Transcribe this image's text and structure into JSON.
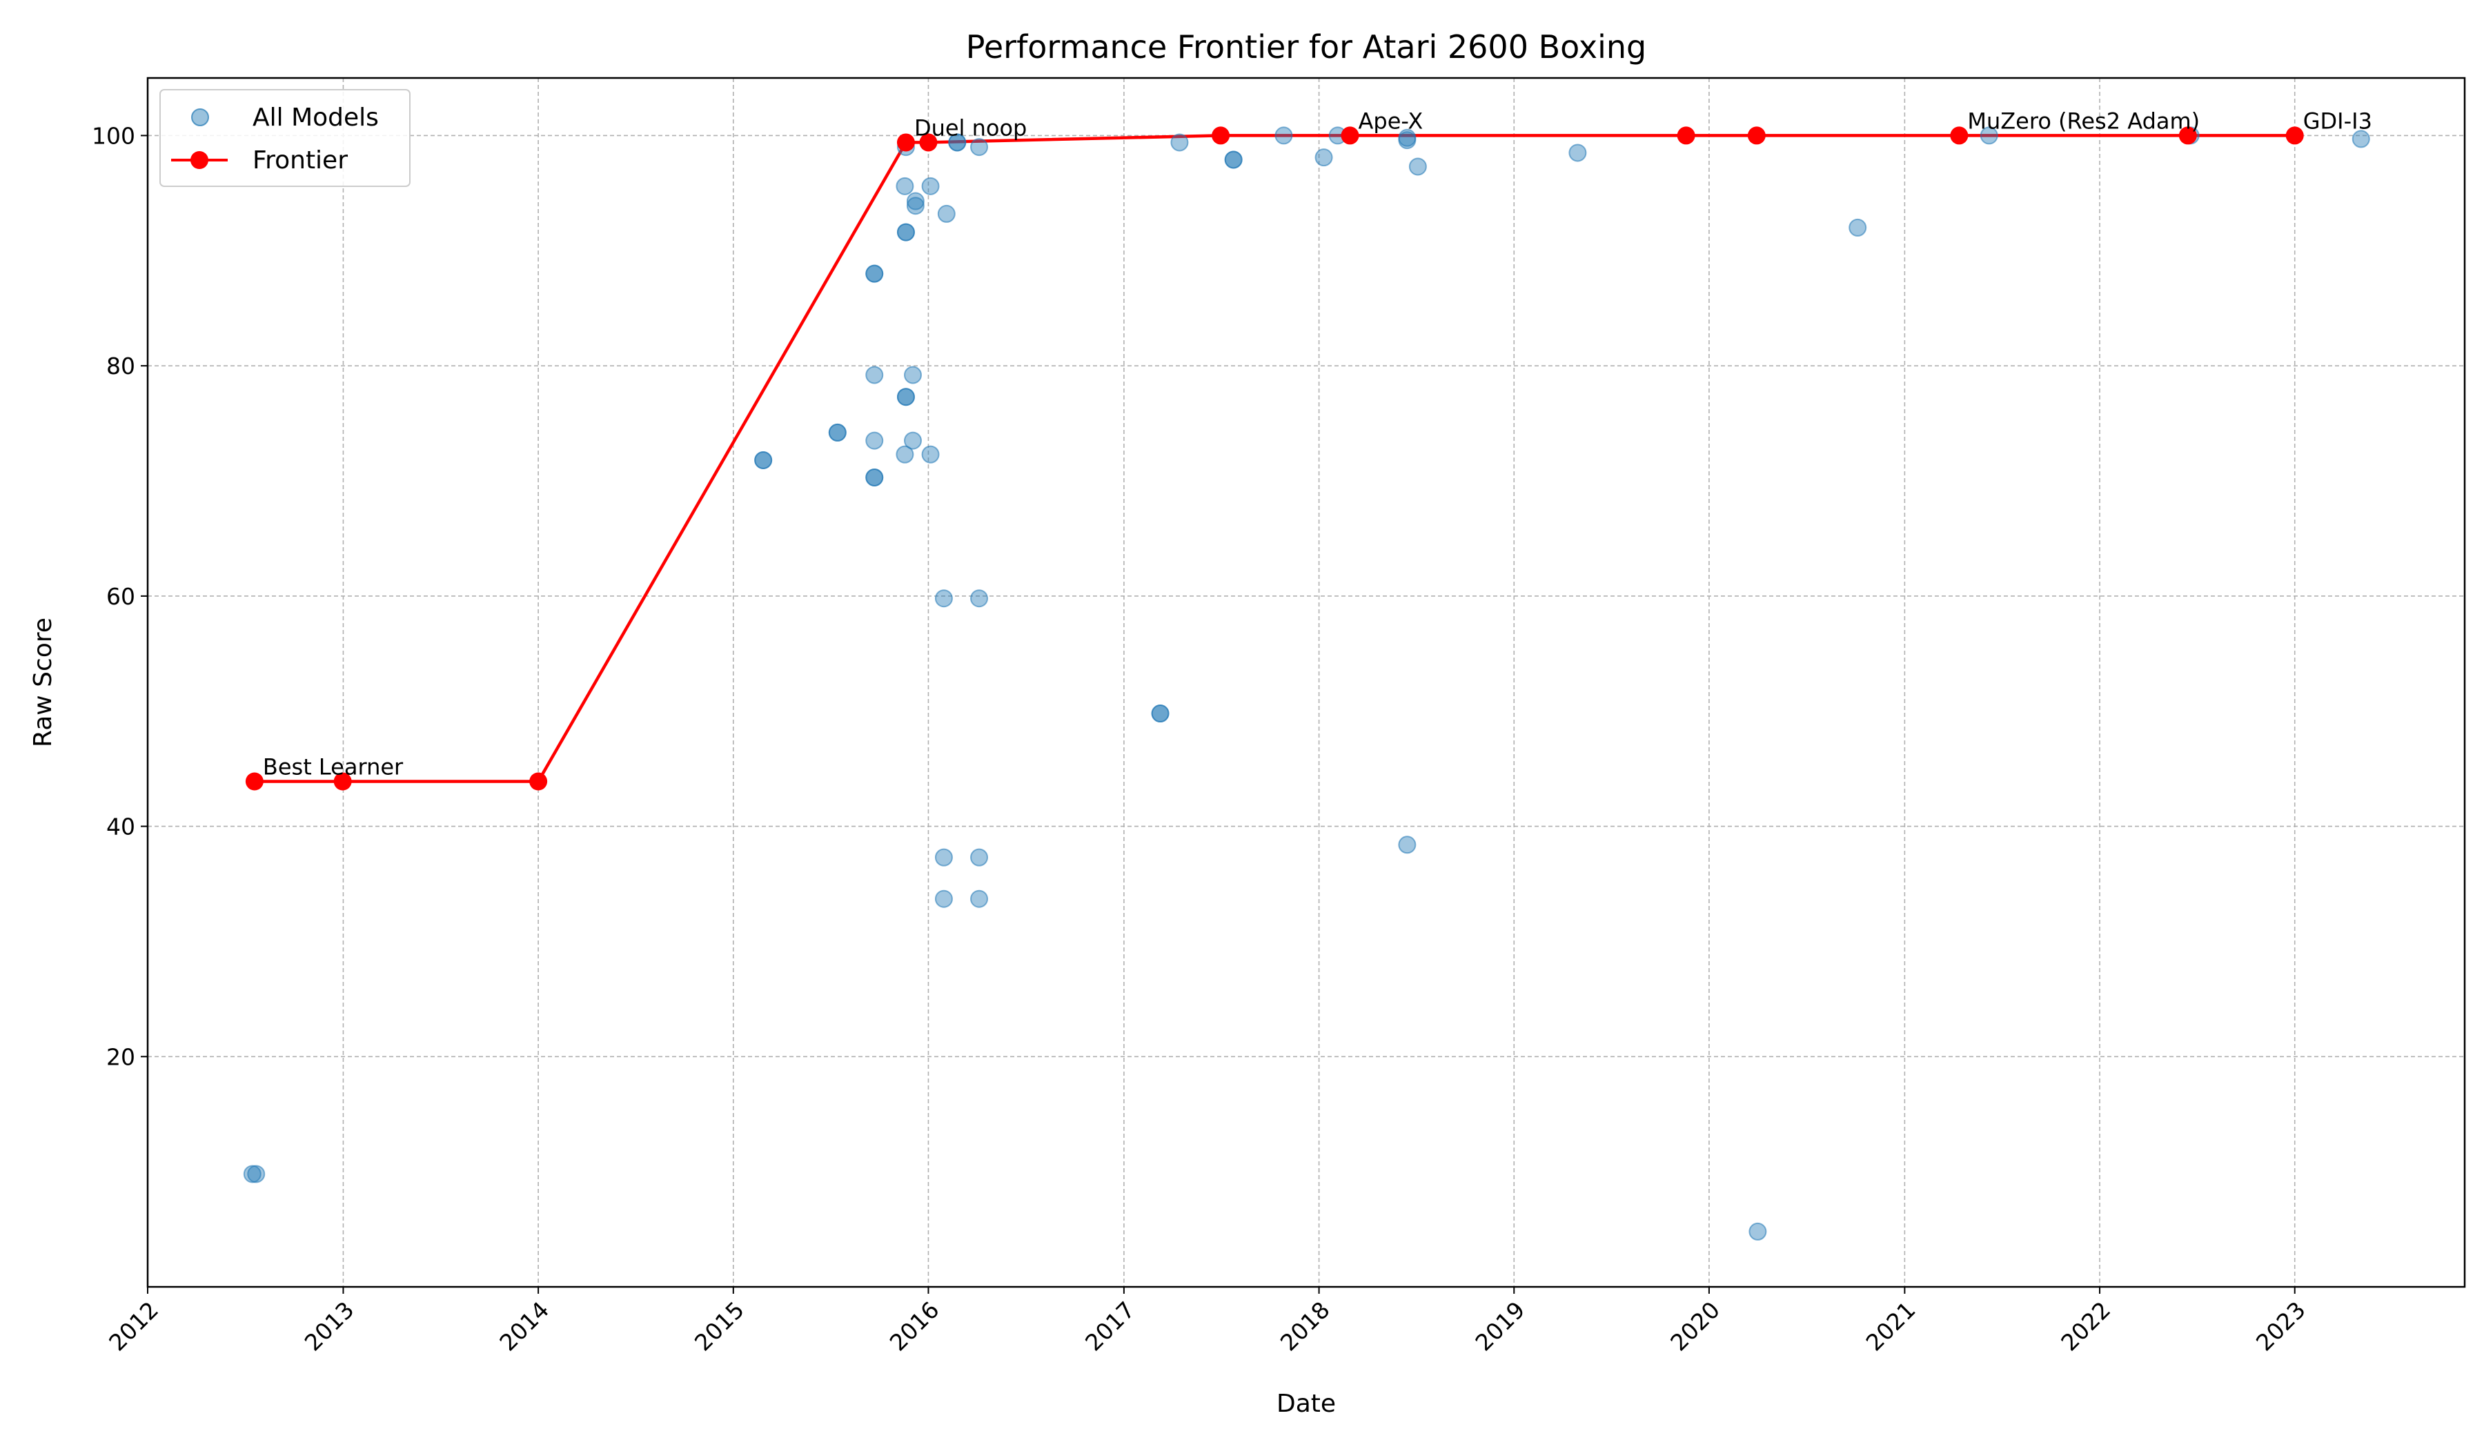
{
  "chart_data": {
    "type": "scatter",
    "title": "Performance Frontier for Atari 2600 Boxing",
    "xlabel": "Date",
    "ylabel": "Raw Score",
    "xlim": [
      "2012-01-01",
      "2023-11-15"
    ],
    "ylim": [
      0,
      105
    ],
    "x_ticks": [
      "2012",
      "2013",
      "2014",
      "2015",
      "2016",
      "2017",
      "2018",
      "2019",
      "2020",
      "2021",
      "2022",
      "2023"
    ],
    "y_ticks": [
      20,
      40,
      60,
      80,
      100
    ],
    "grid": true,
    "legend_position": "top-left",
    "colors": {
      "all_models": "#1f77b4",
      "frontier": "#ff0000"
    },
    "series": [
      {
        "name": "All Models",
        "kind": "scatter",
        "points": [
          {
            "x": "2012-07-15",
            "y": 9.8
          },
          {
            "x": "2012-07-22",
            "y": 9.8
          },
          {
            "x": "2015-02-26",
            "y": 71.8
          },
          {
            "x": "2015-02-26",
            "y": 71.8
          },
          {
            "x": "2015-07-15",
            "y": 74.2
          },
          {
            "x": "2015-07-15",
            "y": 74.2
          },
          {
            "x": "2015-09-22",
            "y": 88.0
          },
          {
            "x": "2015-09-22",
            "y": 88.0
          },
          {
            "x": "2015-09-22",
            "y": 79.2
          },
          {
            "x": "2015-09-22",
            "y": 73.5
          },
          {
            "x": "2015-09-22",
            "y": 70.3
          },
          {
            "x": "2015-09-22",
            "y": 70.3
          },
          {
            "x": "2015-11-20",
            "y": 99.0
          },
          {
            "x": "2015-11-18",
            "y": 95.6
          },
          {
            "x": "2015-11-20",
            "y": 91.6
          },
          {
            "x": "2015-11-20",
            "y": 91.6
          },
          {
            "x": "2015-11-20",
            "y": 77.3
          },
          {
            "x": "2015-11-20",
            "y": 77.3
          },
          {
            "x": "2015-11-18",
            "y": 72.3
          },
          {
            "x": "2015-12-08",
            "y": 94.3
          },
          {
            "x": "2015-12-08",
            "y": 93.9
          },
          {
            "x": "2015-12-03",
            "y": 79.2
          },
          {
            "x": "2015-12-03",
            "y": 73.5
          },
          {
            "x": "2016-01-05",
            "y": 95.6
          },
          {
            "x": "2016-01-05",
            "y": 72.3
          },
          {
            "x": "2016-02-04",
            "y": 93.2
          },
          {
            "x": "2016-02-24",
            "y": 99.4
          },
          {
            "x": "2016-02-24",
            "y": 99.4
          },
          {
            "x": "2016-04-05",
            "y": 99.0
          },
          {
            "x": "2016-01-30",
            "y": 59.8
          },
          {
            "x": "2016-04-05",
            "y": 59.8
          },
          {
            "x": "2016-01-30",
            "y": 37.3
          },
          {
            "x": "2016-04-05",
            "y": 37.3
          },
          {
            "x": "2016-01-30",
            "y": 33.7
          },
          {
            "x": "2016-04-05",
            "y": 33.7
          },
          {
            "x": "2017-03-10",
            "y": 49.8
          },
          {
            "x": "2017-03-10",
            "y": 49.8
          },
          {
            "x": "2017-04-15",
            "y": 99.4
          },
          {
            "x": "2017-07-25",
            "y": 97.9
          },
          {
            "x": "2017-07-25",
            "y": 97.9
          },
          {
            "x": "2017-10-27",
            "y": 100.0
          },
          {
            "x": "2018-01-10",
            "y": 98.1
          },
          {
            "x": "2018-02-05",
            "y": 100.0
          },
          {
            "x": "2018-06-15",
            "y": 99.8
          },
          {
            "x": "2018-06-15",
            "y": 99.6
          },
          {
            "x": "2018-07-05",
            "y": 97.3
          },
          {
            "x": "2018-06-15",
            "y": 38.4
          },
          {
            "x": "2019-04-30",
            "y": 98.5
          },
          {
            "x": "2020-04-01",
            "y": 4.8
          },
          {
            "x": "2020-10-05",
            "y": 92.0
          },
          {
            "x": "2021-06-08",
            "y": 100.0
          },
          {
            "x": "2022-06-20",
            "y": 100.0
          },
          {
            "x": "2023-05-05",
            "y": 99.7
          }
        ]
      },
      {
        "name": "Frontier",
        "kind": "line",
        "points": [
          {
            "x": "2012-07-19",
            "y": 43.9
          },
          {
            "x": "2012-12-31",
            "y": 43.9
          },
          {
            "x": "2014-01-01",
            "y": 43.9
          },
          {
            "x": "2015-11-20",
            "y": 99.4
          },
          {
            "x": "2016-01-01",
            "y": 99.4
          },
          {
            "x": "2017-07-01",
            "y": 100.0
          },
          {
            "x": "2018-02-28",
            "y": 100.0
          },
          {
            "x": "2019-11-19",
            "y": 100.0
          },
          {
            "x": "2020-03-30",
            "y": 100.0
          },
          {
            "x": "2021-04-13",
            "y": 100.0
          },
          {
            "x": "2022-06-15",
            "y": 100.0
          },
          {
            "x": "2023-01-01",
            "y": 100.0
          }
        ]
      }
    ],
    "annotations": [
      {
        "text": "Best Learner",
        "x": "2012-07-19",
        "y": 43.9
      },
      {
        "text": "Duel noop",
        "x": "2015-11-20",
        "y": 99.4
      },
      {
        "text": "Ape-X",
        "x": "2018-02-28",
        "y": 100.0
      },
      {
        "text": "MuZero (Res2 Adam)",
        "x": "2021-04-13",
        "y": 100.0
      },
      {
        "text": "GDI-I3",
        "x": "2023-01-01",
        "y": 100.0
      }
    ]
  }
}
